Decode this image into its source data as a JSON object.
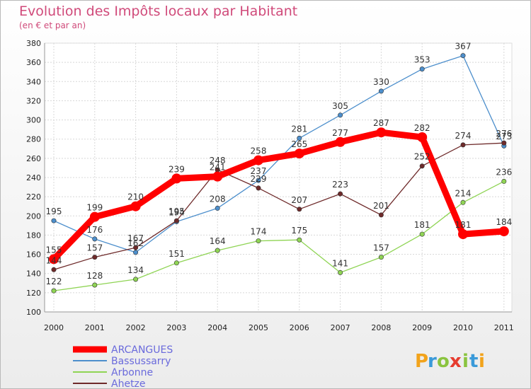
{
  "title": "Evolution des Impôts locaux par Habitant",
  "subtitle": "(en € et par an)",
  "brand": "Proxiti",
  "colors": {
    "accent": "#d04a7a",
    "legend_text": "#6a6adc"
  },
  "chart_data": {
    "type": "line",
    "title": "Evolution des Impôts locaux par Habitant",
    "subtitle": "(en € et par an)",
    "x": [
      "2000",
      "2001",
      "2002",
      "2003",
      "2004",
      "2005",
      "2006",
      "2007",
      "2008",
      "2009",
      "2010",
      "2011"
    ],
    "ylim": [
      100,
      380
    ],
    "yticks": [
      100,
      120,
      140,
      160,
      180,
      200,
      220,
      240,
      260,
      280,
      300,
      320,
      340,
      360,
      380
    ],
    "grid": true,
    "legend_position": "bottom-left",
    "series": [
      {
        "name": "ARCANGUES",
        "color": "#ff0000",
        "values": [
          155,
          199,
          210,
          239,
          241,
          258,
          265,
          277,
          287,
          282,
          181,
          184
        ],
        "labels": [
          "155",
          "199",
          "210",
          "239",
          "241",
          "258",
          "265",
          "277",
          "287",
          "282",
          "181",
          "184"
        ]
      },
      {
        "name": "Bassussarry",
        "color": "#4d8fcc",
        "values": [
          195,
          176,
          162,
          194,
          208,
          237,
          281,
          305,
          330,
          353,
          367,
          273
        ],
        "labels": [
          "195",
          "176",
          "162",
          "194",
          "208",
          "237",
          "281",
          "305",
          "330",
          "353",
          "367",
          "273"
        ]
      },
      {
        "name": "Arbonne",
        "color": "#8fd454",
        "values": [
          122,
          128,
          134,
          151,
          164,
          174,
          175,
          141,
          157,
          181,
          214,
          236
        ],
        "labels": [
          "122",
          "128",
          "134",
          "151",
          "164",
          "174",
          "175",
          "141",
          "157",
          "181",
          "214",
          "236"
        ]
      },
      {
        "name": "Ahetze",
        "color": "#6e2a2a",
        "values": [
          144,
          157,
          167,
          195,
          248,
          229,
          207,
          223,
          201,
          252,
          274,
          276
        ],
        "labels": [
          "144",
          "157",
          "167",
          "195",
          "248",
          "229",
          "207",
          "223",
          "201",
          "252",
          "274",
          "276"
        ]
      }
    ]
  }
}
